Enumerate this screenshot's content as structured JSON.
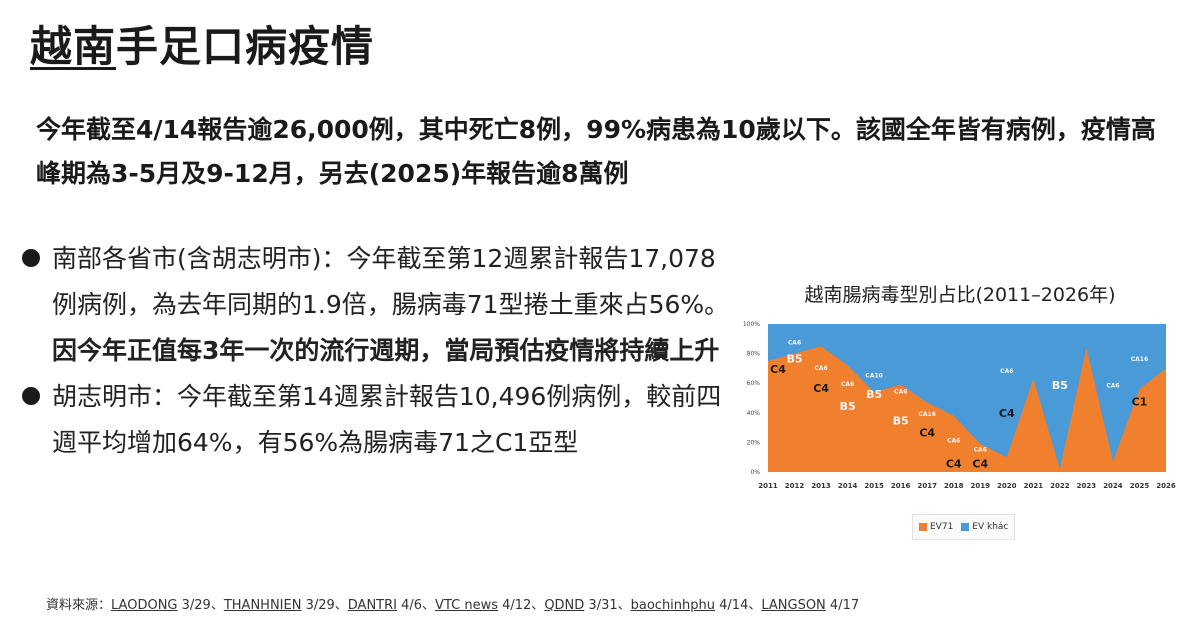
{
  "page": {
    "title_underlined": "越南",
    "title_rest": "手足口病疫情",
    "summary": "今年截至4/14報告逾26,000例，其中死亡8例，99%病患為10歲以下。該國全年皆有病例，疫情高峰期為3-5月及9-12月，另去(2025)年報告逾8萬例",
    "bullets": [
      {
        "text": "南部各省市(含胡志明市)：今年截至第12週累計報告17,078例病例，為去年同期的1.9倍，腸病毒71型捲土重來占56%。",
        "emphasis": "因今年正值每3年一次的流行週期，當局預估疫情將持續上升"
      },
      {
        "text": "胡志明市：今年截至第14週累計報告10,496例病例，較前四週平均增加64%，有56%為腸病毒71之C1亞型",
        "emphasis": ""
      }
    ],
    "source_prefix": "資料來源：",
    "sources": [
      {
        "name": "LAODONG",
        "date": "3/29"
      },
      {
        "name": "THANHNIEN",
        "date": "3/29"
      },
      {
        "name": "DANTRI",
        "date": "4/6"
      },
      {
        "name": "VTC news",
        "date": "4/12"
      },
      {
        "name": "QDND",
        "date": "3/31"
      },
      {
        "name": "baochinhphu",
        "date": "4/14"
      },
      {
        "name": "LANGSON",
        "date": "4/17"
      }
    ],
    "source_separator": "、"
  },
  "chart_data": {
    "type": "area",
    "title": "越南腸病毒型別占比(2011–2026年)",
    "x": [
      "2011",
      "2012",
      "2013",
      "2014",
      "2015",
      "2016",
      "2017",
      "2018",
      "2019",
      "2020",
      "2021",
      "2022",
      "2023",
      "2024",
      "2025",
      "2026"
    ],
    "y_ticks": [
      "0%",
      "20%",
      "40%",
      "60%",
      "80%",
      "100%"
    ],
    "ylim": [
      0,
      100
    ],
    "grid": false,
    "legend_position": "bottom",
    "colors": {
      "EV71": "#f07f2e",
      "EV khác": "#4a9ad8"
    },
    "series": [
      {
        "name": "EV71",
        "values": [
          75,
          80,
          85,
          72,
          54,
          59,
          47,
          38,
          19,
          10,
          63,
          2,
          84,
          7,
          56,
          70
        ]
      },
      {
        "name": "EV khác",
        "values": [
          25,
          20,
          15,
          28,
          46,
          41,
          53,
          62,
          81,
          90,
          37,
          98,
          16,
          93,
          44,
          30
        ]
      }
    ],
    "annotations": [
      {
        "text": "C4",
        "x": "2011",
        "y": 67,
        "tone": "dark"
      },
      {
        "text": "CA6",
        "x": "2012",
        "y": 86,
        "tone": "light"
      },
      {
        "text": "B5",
        "x": "2012",
        "y": 74,
        "tone": "light"
      },
      {
        "text": "CA6",
        "x": "2013",
        "y": 69,
        "tone": "light"
      },
      {
        "text": "C4",
        "x": "2013",
        "y": 54,
        "tone": "dark"
      },
      {
        "text": "CA6",
        "x": "2014",
        "y": 58,
        "tone": "light"
      },
      {
        "text": "B5",
        "x": "2014",
        "y": 42,
        "tone": "light"
      },
      {
        "text": "CA10",
        "x": "2015",
        "y": 64,
        "tone": "light"
      },
      {
        "text": "B5",
        "x": "2015",
        "y": 50,
        "tone": "light"
      },
      {
        "text": "CA6",
        "x": "2016",
        "y": 53,
        "tone": "light"
      },
      {
        "text": "B5",
        "x": "2016",
        "y": 32,
        "tone": "light"
      },
      {
        "text": "CA16",
        "x": "2017",
        "y": 38,
        "tone": "light"
      },
      {
        "text": "C4",
        "x": "2017",
        "y": 24,
        "tone": "dark"
      },
      {
        "text": "CA6",
        "x": "2018",
        "y": 20,
        "tone": "light"
      },
      {
        "text": "CA6",
        "x": "2019",
        "y": 14,
        "tone": "light"
      },
      {
        "text": "C4",
        "x": "2018",
        "y": 3,
        "tone": "dark"
      },
      {
        "text": "C4",
        "x": "2019",
        "y": 3,
        "tone": "dark"
      },
      {
        "text": "CA6",
        "x": "2020",
        "y": 67,
        "tone": "light"
      },
      {
        "text": "C4",
        "x": "2020",
        "y": 37,
        "tone": "dark"
      },
      {
        "text": "B5",
        "x": "2022",
        "y": 56,
        "tone": "light"
      },
      {
        "text": "CA6",
        "x": "2024",
        "y": 57,
        "tone": "light"
      },
      {
        "text": "CA16",
        "x": "2025",
        "y": 75,
        "tone": "light"
      },
      {
        "text": "C1",
        "x": "2025",
        "y": 45,
        "tone": "dark"
      }
    ],
    "legend": [
      "EV71",
      "EV khác"
    ]
  }
}
